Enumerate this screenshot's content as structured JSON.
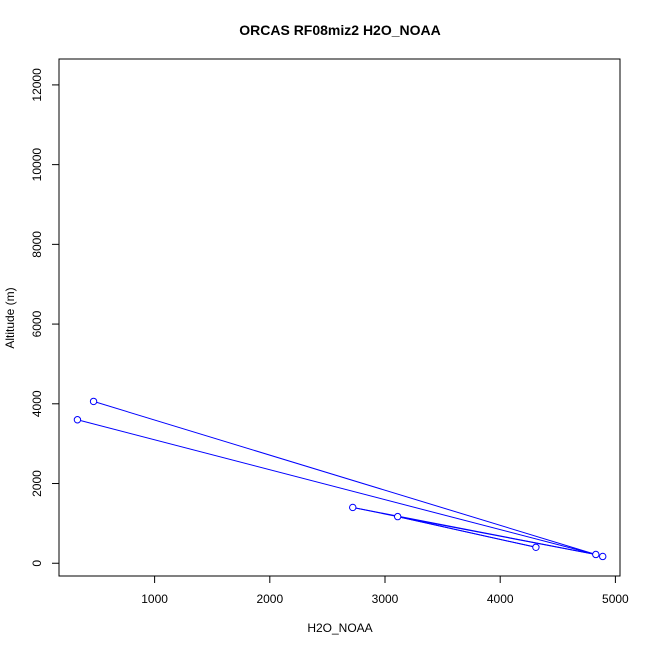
{
  "chart_data": {
    "type": "scatter",
    "title": "ORCAS RF08miz2 H2O_NOAA",
    "xlabel": "H2O_NOAA",
    "ylabel": "Altitude (m)",
    "xlim": [
      170,
      5040
    ],
    "ylim": [
      -320,
      12650
    ],
    "x_ticks": [
      1000,
      2000,
      3000,
      4000,
      5000
    ],
    "y_ticks": [
      0,
      2000,
      4000,
      6000,
      8000,
      10000,
      12000
    ],
    "grid": false,
    "color": "#0000ff",
    "series": [
      {
        "points": [
          {
            "x": 470,
            "y": 4060
          },
          {
            "x": 4830,
            "y": 220
          },
          {
            "x": 4890,
            "y": 170
          },
          {
            "x": 4310,
            "y": 400
          },
          {
            "x": 3110,
            "y": 1170
          },
          {
            "x": 2720,
            "y": 1400
          },
          {
            "x": 330,
            "y": 3600
          }
        ],
        "path": [
          {
            "x": 470,
            "y": 4060
          },
          {
            "x": 4830,
            "y": 220
          },
          {
            "x": 3110,
            "y": 1170
          },
          {
            "x": 4310,
            "y": 400
          },
          {
            "x": 3110,
            "y": 1170
          },
          {
            "x": 2720,
            "y": 1400
          },
          {
            "x": 4830,
            "y": 220
          },
          {
            "x": 330,
            "y": 3600
          }
        ]
      }
    ]
  }
}
